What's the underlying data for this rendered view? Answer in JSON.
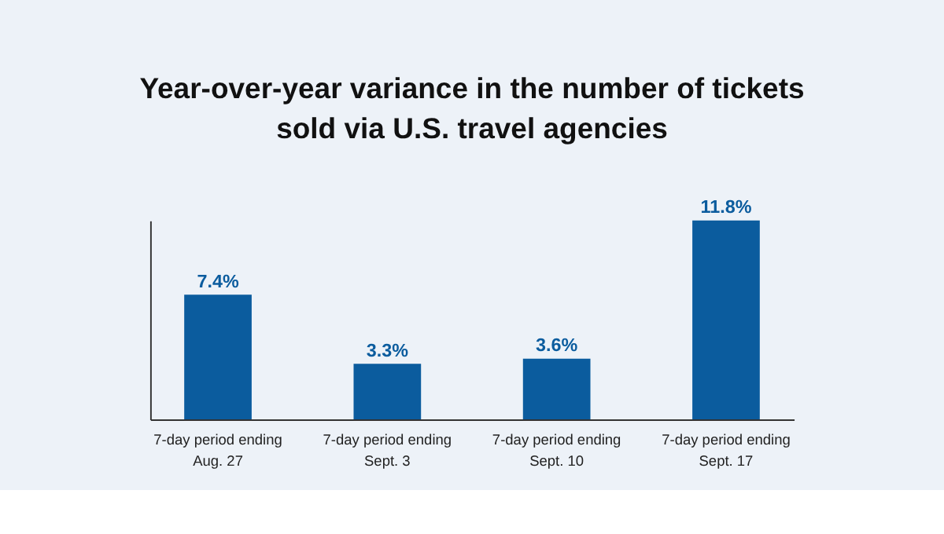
{
  "chart_data": {
    "type": "bar",
    "title": "Year-over-year variance in the number of tickets sold via U.S. travel agencies",
    "categories": [
      "7-day period ending\nAug. 27",
      "7-day period ending\nSept. 3",
      "7-day period ending\nSept. 10",
      "7-day period ending\nSept. 17"
    ],
    "values": [
      7.4,
      3.3,
      3.6,
      11.8
    ],
    "value_labels": [
      "7.4%",
      "3.3%",
      "3.6%",
      "11.8%"
    ],
    "color": "#0b5c9e",
    "grid": false
  }
}
